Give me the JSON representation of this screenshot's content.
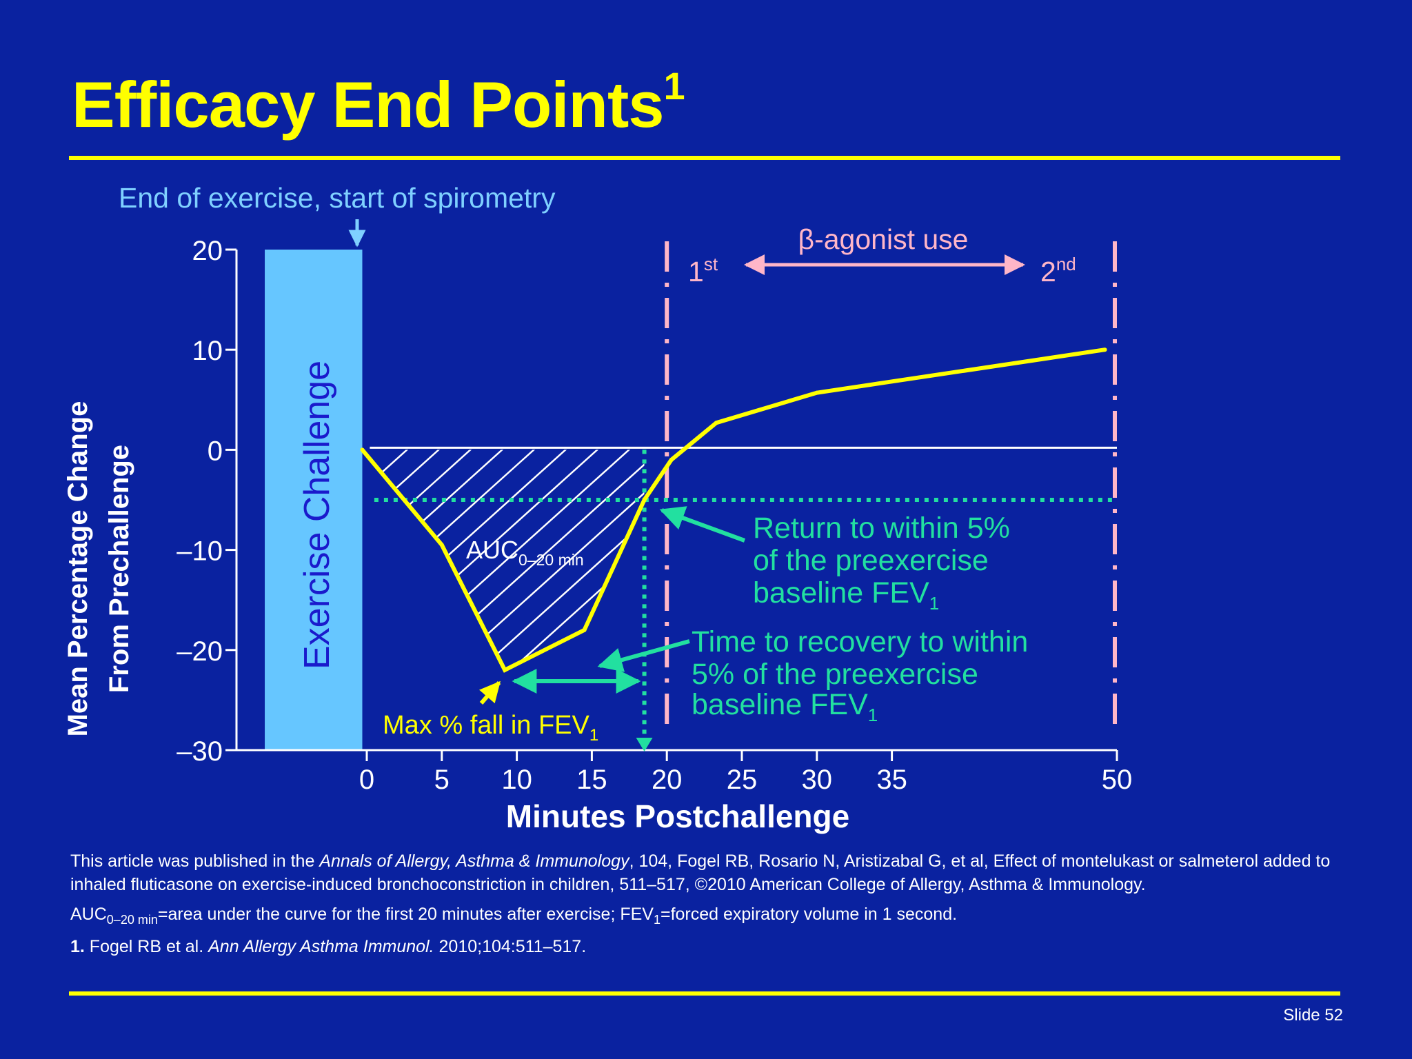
{
  "slide": {
    "title": "Efficacy End Points",
    "title_ref": "1",
    "slide_number": "Slide 52",
    "colors": {
      "background": "#0a22a0",
      "title": "#ffff00",
      "rule": "#ffff00",
      "curve": "#ffff00",
      "challenge_bar": "#66c6ff",
      "annotation_green": "#22e0a0",
      "agonist_markers": "#ffb6c8",
      "text_light_blue": "#7fd0ff"
    }
  },
  "references": {
    "citation_before": "This article was published in the ",
    "citation_journal": "Annals of Allergy, Asthma & Immunology",
    "citation_after": ", 104, Fogel RB, Rosario N, Aristizabal G, et al, Effect of montelukast or salmeterol added to inhaled fluticasone on exercise-induced bronchoconstriction in children, 511–517, ©2010 American College of Allergy, Asthma & Immunology.",
    "abbrev_auc": "AUC",
    "abbrev_auc_sub": "0–20 min",
    "abbrev_mid": "=area under the curve for the first 20 minutes after exercise; FEV",
    "abbrev_fev_sub": "1",
    "abbrev_end": "=forced expiratory volume in 1 second.",
    "ref_number": "1.",
    "ref_authors": " Fogel RB et al. ",
    "ref_journal": "Ann Allergy Asthma Immunol.",
    "ref_details": " 2010;104:511–517."
  },
  "chart_data": {
    "type": "line",
    "xlabel": "Minutes Postchallenge",
    "ylabel_line1": "Mean Percentage Change",
    "ylabel_line2": "From Prechallenge",
    "xlim": [
      -7,
      50
    ],
    "ylim": [
      -30,
      20
    ],
    "x_ticks": [
      0,
      5,
      10,
      15,
      20,
      25,
      30,
      35,
      50
    ],
    "y_ticks": [
      20,
      10,
      0,
      -10,
      -20,
      -30
    ],
    "y_tick_labels": [
      "20",
      "10",
      "0",
      "–10",
      "–20",
      "–30"
    ],
    "series": [
      {
        "x": [
          -0.3,
          5,
          9.2,
          14.5,
          18.5,
          20.3,
          23.3,
          30,
          49.2
        ],
        "y": [
          0,
          -9.5,
          -22,
          -18,
          -5,
          -1,
          2.7,
          5.7,
          10
        ]
      }
    ],
    "exercise_challenge": {
      "label": "Exercise Challenge",
      "x_range": [
        -6.8,
        -0.3
      ],
      "y_range": [
        -30,
        20
      ]
    },
    "baseline_y": 0,
    "five_percent_threshold_y": -5,
    "recovery_time_x": 18.5,
    "agonist_marker_x": [
      20,
      50
    ],
    "annotations": {
      "exercise_end": "End of exercise, start of spirometry",
      "agonist_use": "β-agonist use",
      "first": "1",
      "first_sup": "st",
      "second": "2",
      "second_sup": "nd",
      "auc": "AUC",
      "auc_sub": "0–20 min",
      "return_line1": "Return to within 5%",
      "return_line2": "of the preexercise",
      "return_line3": "baseline FEV",
      "return_line3_sub": "1",
      "recovery_line1": "Time to recovery to within",
      "recovery_line2": "5% of the preexercise",
      "recovery_line3": "baseline FEV",
      "recovery_line3_sub": "1",
      "max_fall": "Max % fall in FEV",
      "max_fall_sub": "1"
    }
  }
}
